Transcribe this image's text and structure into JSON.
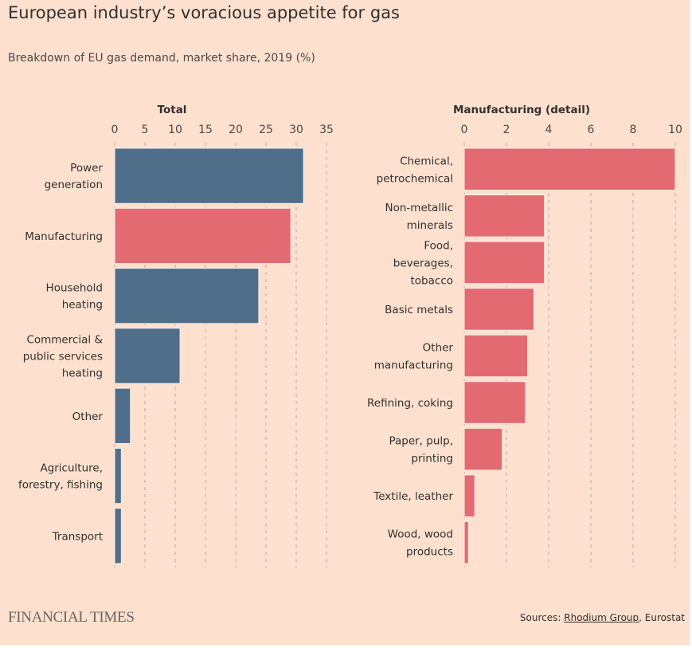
{
  "header": {
    "title": "European industry’s voracious appetite for gas",
    "subtitle": "Breakdown of EU gas demand, market share, 2019 (%)"
  },
  "footer": {
    "logo": "FINANCIAL TIMES",
    "sources_prefix": "Sources: ",
    "source_1": "Rhodium Group",
    "source_sep": ", ",
    "source_2": "Eurostat"
  },
  "colors": {
    "background": "#fde0ce",
    "blue": "#4e6e8a",
    "red": "#e46a72"
  },
  "chart_data": [
    {
      "type": "bar",
      "orientation": "horizontal",
      "title": "Total",
      "xlabel": "",
      "ylabel": "",
      "xlim": [
        0,
        35
      ],
      "ticks": [
        0,
        5,
        10,
        15,
        20,
        25,
        30,
        35
      ],
      "grid": true,
      "categories": [
        [
          "Power",
          "generation"
        ],
        [
          "Manufacturing"
        ],
        [
          "Household",
          "heating"
        ],
        [
          "Commercial &",
          "public services",
          "heating"
        ],
        [
          "Other"
        ],
        [
          "Agriculture,",
          "forestry, fishing"
        ],
        [
          "Transport"
        ]
      ],
      "values": [
        31.2,
        29.1,
        23.8,
        10.8,
        2.6,
        1.1,
        1.1
      ],
      "bar_colors": [
        "blue",
        "red",
        "blue",
        "blue",
        "blue",
        "blue",
        "blue"
      ]
    },
    {
      "type": "bar",
      "orientation": "horizontal",
      "title": "Manufacturing (detail)",
      "xlabel": "",
      "ylabel": "",
      "xlim": [
        0,
        10
      ],
      "ticks": [
        0,
        2,
        4,
        6,
        8,
        10
      ],
      "grid": true,
      "categories": [
        [
          "Chemical,",
          "petrochemical"
        ],
        [
          "Non-metallic",
          "minerals"
        ],
        [
          "Food,",
          "beverages,",
          "tobacco"
        ],
        [
          "Basic metals"
        ],
        [
          "Other",
          "manufacturing"
        ],
        [
          "Refining, coking"
        ],
        [
          "Paper, pulp,",
          "printing"
        ],
        [
          "Textile, leather"
        ],
        [
          "Wood, wood",
          "products"
        ]
      ],
      "values": [
        10.0,
        3.8,
        3.8,
        3.3,
        3.0,
        2.9,
        1.8,
        0.5,
        0.2
      ],
      "bar_colors": [
        "red",
        "red",
        "red",
        "red",
        "red",
        "red",
        "red",
        "red",
        "red"
      ]
    }
  ]
}
